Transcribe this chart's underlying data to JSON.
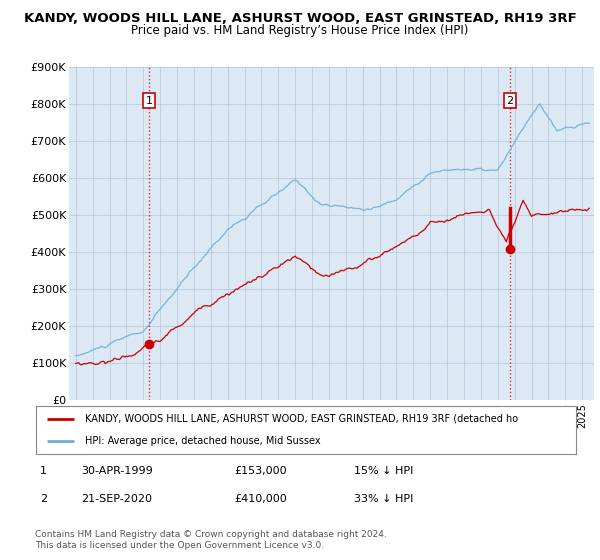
{
  "title": "KANDY, WOODS HILL LANE, ASHURST WOOD, EAST GRINSTEAD, RH19 3RF",
  "subtitle": "Price paid vs. HM Land Registry’s House Price Index (HPI)",
  "ylim": [
    0,
    900000
  ],
  "yticks": [
    0,
    100000,
    200000,
    300000,
    400000,
    500000,
    600000,
    700000,
    800000,
    900000
  ],
  "ytick_labels": [
    "£0",
    "£100K",
    "£200K",
    "£300K",
    "£400K",
    "£500K",
    "£600K",
    "£700K",
    "£800K",
    "£900K"
  ],
  "hpi_color": "#6baed6",
  "price_color": "#cc0000",
  "bg_color": "#dce9f5",
  "grid_color": "#b0c4d8",
  "legend_line1": "KANDY, WOODS HILL LANE, ASHURST WOOD, EAST GRINSTEAD, RH19 3RF (detached ho",
  "legend_line2": "HPI: Average price, detached house, Mid Sussex",
  "annotation1_date": "30-APR-1999",
  "annotation1_price": "£153,000",
  "annotation1_hpi": "15% ↓ HPI",
  "annotation2_date": "21-SEP-2020",
  "annotation2_price": "£410,000",
  "annotation2_hpi": "33% ↓ HPI",
  "footer": "Contains HM Land Registry data © Crown copyright and database right 2024.\nThis data is licensed under the Open Government Licence v3.0.",
  "sale1_year": 1999.33,
  "sale1_value": 153000,
  "sale2_year": 2020.72,
  "sale2_value": 410000
}
